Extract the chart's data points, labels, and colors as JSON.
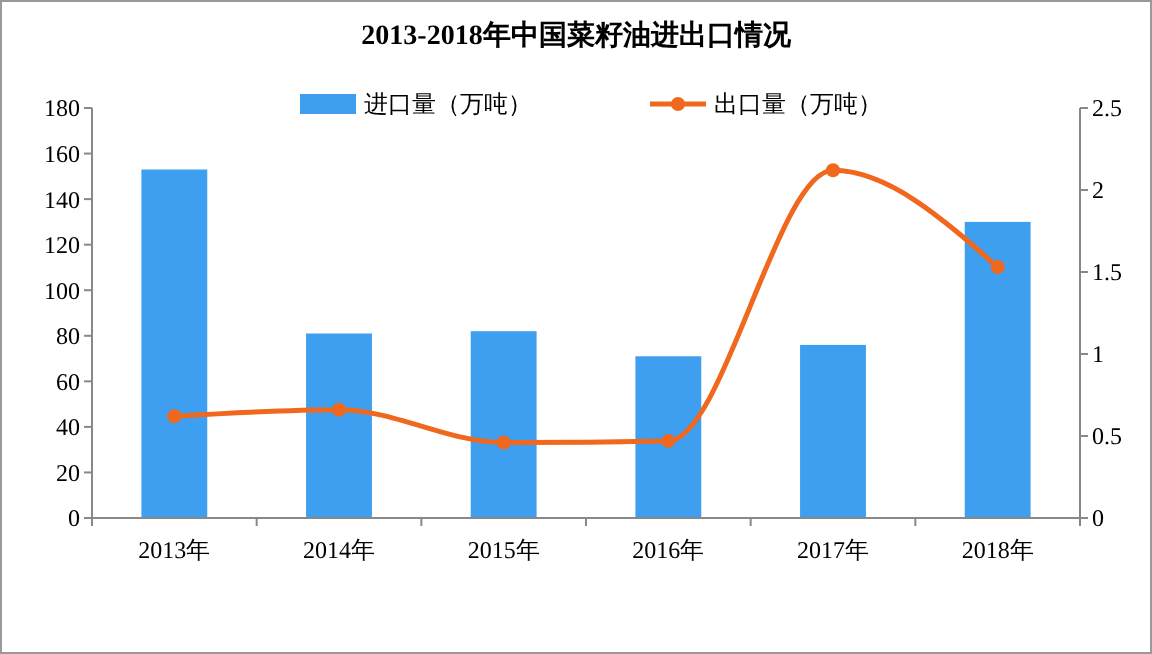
{
  "chart_data": {
    "type": "bar",
    "title": "2013-2018年中国菜籽油进出口情况",
    "categories": [
      "2013年",
      "2014年",
      "2015年",
      "2016年",
      "2017年",
      "2018年"
    ],
    "series": [
      {
        "name": "进口量（万吨）",
        "color": "#3e9ff0",
        "values": [
          153,
          81,
          82,
          71,
          76,
          130
        ]
      },
      {
        "name": "出口量（万吨）",
        "type": "line",
        "axis": "y2",
        "color": "#f0671e",
        "marker": "circle",
        "values": [
          0.62,
          0.66,
          0.46,
          0.47,
          2.12,
          1.53
        ]
      }
    ],
    "ylim": [
      0,
      180
    ],
    "yticks": [
      0,
      20,
      40,
      60,
      80,
      100,
      120,
      140,
      160,
      180
    ],
    "y2lim": [
      0,
      2.5
    ],
    "y2ticks": [
      0,
      0.5,
      1,
      1.5,
      2,
      2.5
    ],
    "legend": "top",
    "grid": false
  }
}
